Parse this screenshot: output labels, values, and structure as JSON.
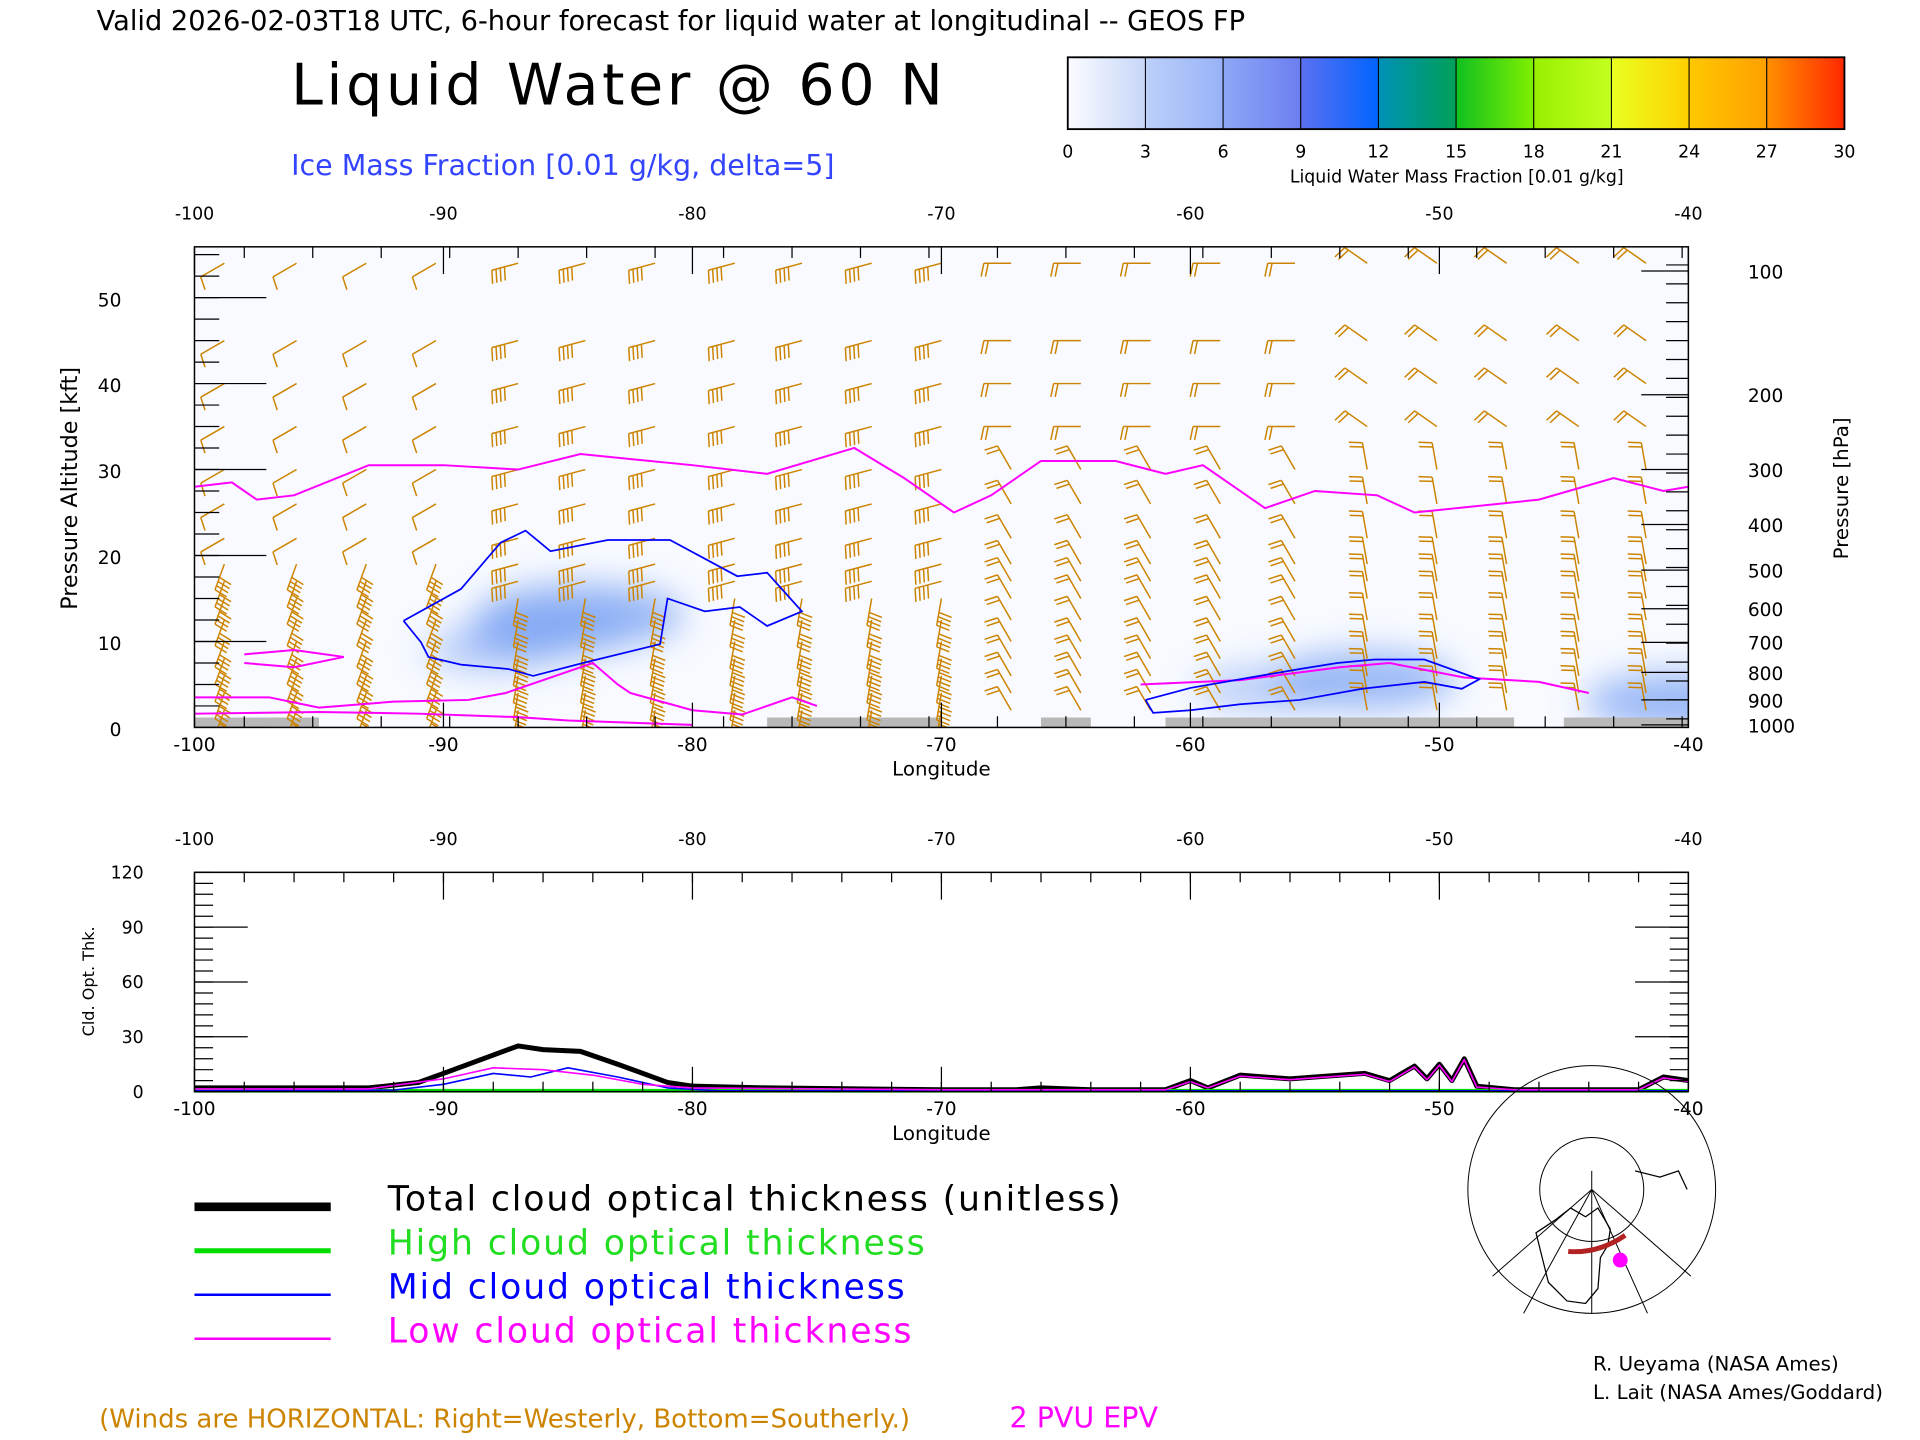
{
  "header": {
    "valid_line": "Valid 2026-02-03T18 UTC, 6-hour forecast for liquid water at longitudinal -- GEOS FP",
    "title": "Liquid Water @ 60 N",
    "subtitle": "Ice Mass Fraction [0.01 g/kg, delta=5]"
  },
  "colorbar": {
    "ticks": [
      "0",
      "3",
      "6",
      "9",
      "12",
      "15",
      "18",
      "21",
      "24",
      "27",
      "30"
    ],
    "label": "Liquid Water Mass Fraction [0.01 g/kg]",
    "colors": [
      [
        "#fbfcff",
        "#c6d6f8"
      ],
      [
        "#bcd0fa",
        "#98b2f8"
      ],
      [
        "#8ea8f6",
        "#6c7ef0"
      ],
      [
        "#5c70f0",
        "#0064ff"
      ],
      [
        "#0090b8",
        "#00a058"
      ],
      [
        "#10c020",
        "#80f000"
      ],
      [
        "#98f000",
        "#c4ff20"
      ],
      [
        "#e8ff20",
        "#ffd000"
      ],
      [
        "#ffc800",
        "#ffa000"
      ],
      [
        "#ff9000",
        "#ff2800"
      ]
    ]
  },
  "chart_data": [
    {
      "type": "line",
      "title": "Liquid Water @ 60 N",
      "xlabel": "Longitude",
      "ylabel": "Pressure Altitude [kft]",
      "ylabel_right": "Pressure [hPa]",
      "xlim": [
        -100,
        -40
      ],
      "ylim": [
        0,
        55
      ],
      "x_ticks": [
        "-100",
        "-90",
        "-80",
        "-70",
        "-60",
        "-50",
        "-40"
      ],
      "x_tick_values": [
        -100,
        -90,
        -80,
        -70,
        -60,
        -50,
        -40
      ],
      "y_ticks": [
        "0",
        "10",
        "20",
        "30",
        "40",
        "50"
      ],
      "y_tick_values": [
        0,
        10,
        20,
        30,
        40,
        50
      ],
      "pressure_ticks": [
        {
          "label": "100",
          "kft": 53.1
        },
        {
          "label": "200",
          "kft": 38.7
        },
        {
          "label": "300",
          "kft": 30.0
        },
        {
          "label": "400",
          "kft": 23.6
        },
        {
          "label": "500",
          "kft": 18.3
        },
        {
          "label": "600",
          "kft": 13.8
        },
        {
          "label": "700",
          "kft": 9.9
        },
        {
          "label": "800",
          "kft": 6.4
        },
        {
          "label": "900",
          "kft": 3.2
        },
        {
          "label": "1000",
          "kft": 0.3
        }
      ],
      "tropopause_2pvu": [
        [
          -100,
          28
        ],
        [
          -98.5,
          28.5
        ],
        [
          -97.5,
          26.5
        ],
        [
          -96,
          27
        ],
        [
          -93,
          30.5
        ],
        [
          -90,
          30.5
        ],
        [
          -87,
          30
        ],
        [
          -84.5,
          31.8
        ],
        [
          -80,
          30.5
        ],
        [
          -77,
          29.5
        ],
        [
          -73.5,
          32.5
        ],
        [
          -71.5,
          29
        ],
        [
          -69.5,
          25
        ],
        [
          -68,
          27
        ],
        [
          -66,
          31
        ],
        [
          -63,
          31
        ],
        [
          -61,
          29.5
        ],
        [
          -59.5,
          30.5
        ],
        [
          -57,
          25.5
        ],
        [
          -55,
          27.5
        ],
        [
          -52.5,
          27
        ],
        [
          -51,
          25
        ],
        [
          -46,
          26.5
        ],
        [
          -43,
          29
        ],
        [
          -41,
          27.5
        ],
        [
          -40,
          28
        ]
      ],
      "low_epv_lines": [
        [
          [
            -100,
            3.5
          ],
          [
            -97,
            3.5
          ],
          [
            -95,
            2.3
          ],
          [
            -92,
            3
          ],
          [
            -89,
            3.2
          ],
          [
            -87.5,
            4
          ],
          [
            -85,
            6.5
          ],
          [
            -84,
            7.5
          ],
          [
            -83,
            5
          ],
          [
            -82.5,
            4
          ],
          [
            -80,
            2
          ],
          [
            -78,
            1.5
          ],
          [
            -76,
            3.5
          ],
          [
            -75,
            2.5
          ]
        ],
        [
          [
            -100,
            1.6
          ],
          [
            -95,
            1.8
          ],
          [
            -91,
            1.6
          ],
          [
            -87,
            1.2
          ],
          [
            -85,
            0.8
          ],
          [
            -80,
            0.3
          ]
        ],
        [
          [
            -98,
            8.5
          ],
          [
            -96,
            9
          ],
          [
            -94,
            8.2
          ],
          [
            -96,
            7
          ],
          [
            -98,
            7.5
          ]
        ],
        [
          [
            -62,
            5
          ],
          [
            -58,
            5.5
          ],
          [
            -54,
            7
          ],
          [
            -52,
            7.5
          ],
          [
            -49,
            5.8
          ],
          [
            -46,
            5.3
          ],
          [
            -44,
            4
          ]
        ]
      ],
      "ice_contours": [
        [
          [
            -91.6,
            12.4
          ],
          [
            -89.3,
            16.1
          ],
          [
            -87.7,
            21.5
          ],
          [
            -86.7,
            22.9
          ],
          [
            -85.7,
            20.5
          ],
          [
            -83.4,
            21.8
          ],
          [
            -80.9,
            21.8
          ],
          [
            -78.2,
            17.6
          ],
          [
            -77,
            18
          ],
          [
            -75.6,
            13.5
          ],
          [
            -77,
            11.8
          ],
          [
            -78.1,
            14
          ],
          [
            -79.5,
            13.5
          ],
          [
            -81,
            15
          ],
          [
            -81.3,
            9.7
          ],
          [
            -84.4,
            7.5
          ],
          [
            -86.4,
            6
          ],
          [
            -87.4,
            6.8
          ],
          [
            -89.3,
            7.3
          ],
          [
            -90.6,
            8.2
          ],
          [
            -90.9,
            9.9
          ],
          [
            -91.6,
            12.4
          ]
        ],
        [
          [
            -61.8,
            3.2
          ],
          [
            -60,
            4.6
          ],
          [
            -58,
            5.6
          ],
          [
            -55.6,
            6.8
          ],
          [
            -54.1,
            7.5
          ],
          [
            -52.6,
            7.9
          ],
          [
            -50.6,
            7.9
          ],
          [
            -48.4,
            5.6
          ],
          [
            -49.1,
            4.5
          ],
          [
            -50.6,
            5.3
          ],
          [
            -53.1,
            4.5
          ],
          [
            -55.6,
            3.2
          ],
          [
            -58,
            2.7
          ],
          [
            -60,
            2
          ],
          [
            -61.5,
            1.7
          ],
          [
            -61.8,
            3.2
          ]
        ]
      ],
      "liquid_shading": [
        {
          "lon": -86,
          "kft": 11,
          "value": 5
        },
        {
          "lon": -84.5,
          "kft": 13,
          "value": 7
        },
        {
          "lon": -88,
          "kft": 9,
          "value": 4
        },
        {
          "lon": -53,
          "kft": 5.5,
          "value": 6
        },
        {
          "lon": -57,
          "kft": 4.5,
          "value": 4
        },
        {
          "lon": -40.5,
          "kft": 3,
          "value": 6
        }
      ],
      "terrain": [
        [
          -100,
          -95
        ],
        [
          -77,
          -70
        ],
        [
          -66,
          -64
        ],
        [
          -61,
          -47
        ],
        [
          -45,
          -40
        ]
      ],
      "wind_barbs": {
        "columns_lon": [
          -98.8,
          -95.9,
          -93.1,
          -90.3,
          -87,
          -84.3,
          -81.5,
          -78.3,
          -75.6,
          -72.8,
          -70,
          -67.2,
          -64.4,
          -61.6,
          -58.8,
          -55.8,
          -52.9,
          -50.1,
          -47.3,
          -44.4,
          -41.7
        ],
        "levels_kft": [
          54,
          45,
          40,
          35,
          30,
          26,
          22,
          19,
          17,
          15,
          12.5,
          10,
          8,
          6,
          4,
          2
        ]
      }
    },
    {
      "type": "line",
      "xlabel": "Longitude",
      "ylabel": "Cld. Opt. Thk.",
      "xlim": [
        -100,
        -40
      ],
      "ylim": [
        0,
        120
      ],
      "x_ticks": [
        "-100",
        "-90",
        "-80",
        "-70",
        "-60",
        "-50",
        "-40"
      ],
      "x_tick_values": [
        -100,
        -90,
        -80,
        -70,
        -60,
        -50,
        -40
      ],
      "y_ticks": [
        "0",
        "30",
        "60",
        "90",
        "120"
      ],
      "y_tick_values": [
        0,
        30,
        60,
        90,
        120
      ],
      "series": [
        {
          "name": "Total cloud optical thickness (unitless)",
          "color": "#000000",
          "width": 4,
          "points": [
            [
              -100,
              2
            ],
            [
              -93,
              2
            ],
            [
              -91,
              5
            ],
            [
              -90,
              10
            ],
            [
              -88,
              20
            ],
            [
              -87,
              25
            ],
            [
              -86,
              23
            ],
            [
              -84.5,
              22
            ],
            [
              -83,
              15
            ],
            [
              -81,
              5
            ],
            [
              -80,
              3
            ],
            [
              -77,
              2
            ],
            [
              -70,
              1
            ],
            [
              -67,
              1
            ],
            [
              -66,
              2
            ],
            [
              -64,
              1
            ],
            [
              -61,
              1
            ],
            [
              -60,
              6
            ],
            [
              -59.3,
              2
            ],
            [
              -58,
              9
            ],
            [
              -56,
              7
            ],
            [
              -55,
              8
            ],
            [
              -53,
              10
            ],
            [
              -52,
              6
            ],
            [
              -51,
              14
            ],
            [
              -50.5,
              7
            ],
            [
              -50,
              15
            ],
            [
              -49.5,
              6
            ],
            [
              -49,
              18
            ],
            [
              -48.5,
              3
            ],
            [
              -47,
              1
            ],
            [
              -42,
              1
            ],
            [
              -41,
              8
            ],
            [
              -40,
              6
            ]
          ]
        },
        {
          "name": "High cloud optical thickness",
          "color": "#00e000",
          "width": 3,
          "points": [
            [
              -100,
              0.5
            ],
            [
              -40,
              0.5
            ]
          ]
        },
        {
          "name": "Mid cloud optical thickness",
          "color": "#0000ff",
          "width": 1.3,
          "points": [
            [
              -100,
              0.5
            ],
            [
              -92,
              0.8
            ],
            [
              -90,
              4
            ],
            [
              -88,
              10
            ],
            [
              -86.5,
              8
            ],
            [
              -85,
              13
            ],
            [
              -83,
              8
            ],
            [
              -81,
              2
            ],
            [
              -79,
              0.5
            ],
            [
              -40,
              0.5
            ]
          ]
        },
        {
          "name": "Low cloud optical thickness",
          "color": "#ff00ff",
          "width": 1.3,
          "points": [
            [
              -100,
              1.5
            ],
            [
              -93,
              1.5
            ],
            [
              -90,
              7
            ],
            [
              -88,
              13
            ],
            [
              -86,
              12
            ],
            [
              -84,
              9
            ],
            [
              -82,
              4
            ],
            [
              -80,
              2
            ],
            [
              -70,
              1
            ],
            [
              -61,
              1
            ],
            [
              -60,
              5.5
            ],
            [
              -59.3,
              2
            ],
            [
              -58,
              8.5
            ],
            [
              -56,
              6.5
            ],
            [
              -55,
              7.5
            ],
            [
              -53,
              9.5
            ],
            [
              -52,
              5.5
            ],
            [
              -51,
              13.5
            ],
            [
              -50.5,
              6.5
            ],
            [
              -50,
              14.5
            ],
            [
              -49.5,
              5.5
            ],
            [
              -49,
              17.5
            ],
            [
              -48.5,
              2.5
            ],
            [
              -47,
              1
            ],
            [
              -42,
              1
            ],
            [
              -41,
              7.5
            ],
            [
              -40,
              5.5
            ]
          ]
        }
      ]
    }
  ],
  "legend": {
    "items": [
      {
        "label": "Total cloud optical thickness (unitless)",
        "color": "#000000",
        "width": 7
      },
      {
        "label": "High cloud optical thickness",
        "color": "#00dd00",
        "width": 4
      },
      {
        "label": "Mid cloud optical thickness",
        "color": "#0000ff",
        "width": 2
      },
      {
        "label": "Low cloud optical thickness",
        "color": "#ff00ff",
        "width": 2
      }
    ]
  },
  "footer": {
    "winds_note": "(Winds are HORIZONTAL: Right=Westerly, Bottom=Southerly.)",
    "epv_label": "2 PVU EPV",
    "credit1": "R. Ueyama (NASA Ames)",
    "credit2": "L. Lait (NASA Ames/Goddard)"
  },
  "colors": {
    "wind": "#cc8400",
    "tropopause": "#ff00ff",
    "ice": "#0000ff",
    "terrain": "#b8b8b8"
  }
}
